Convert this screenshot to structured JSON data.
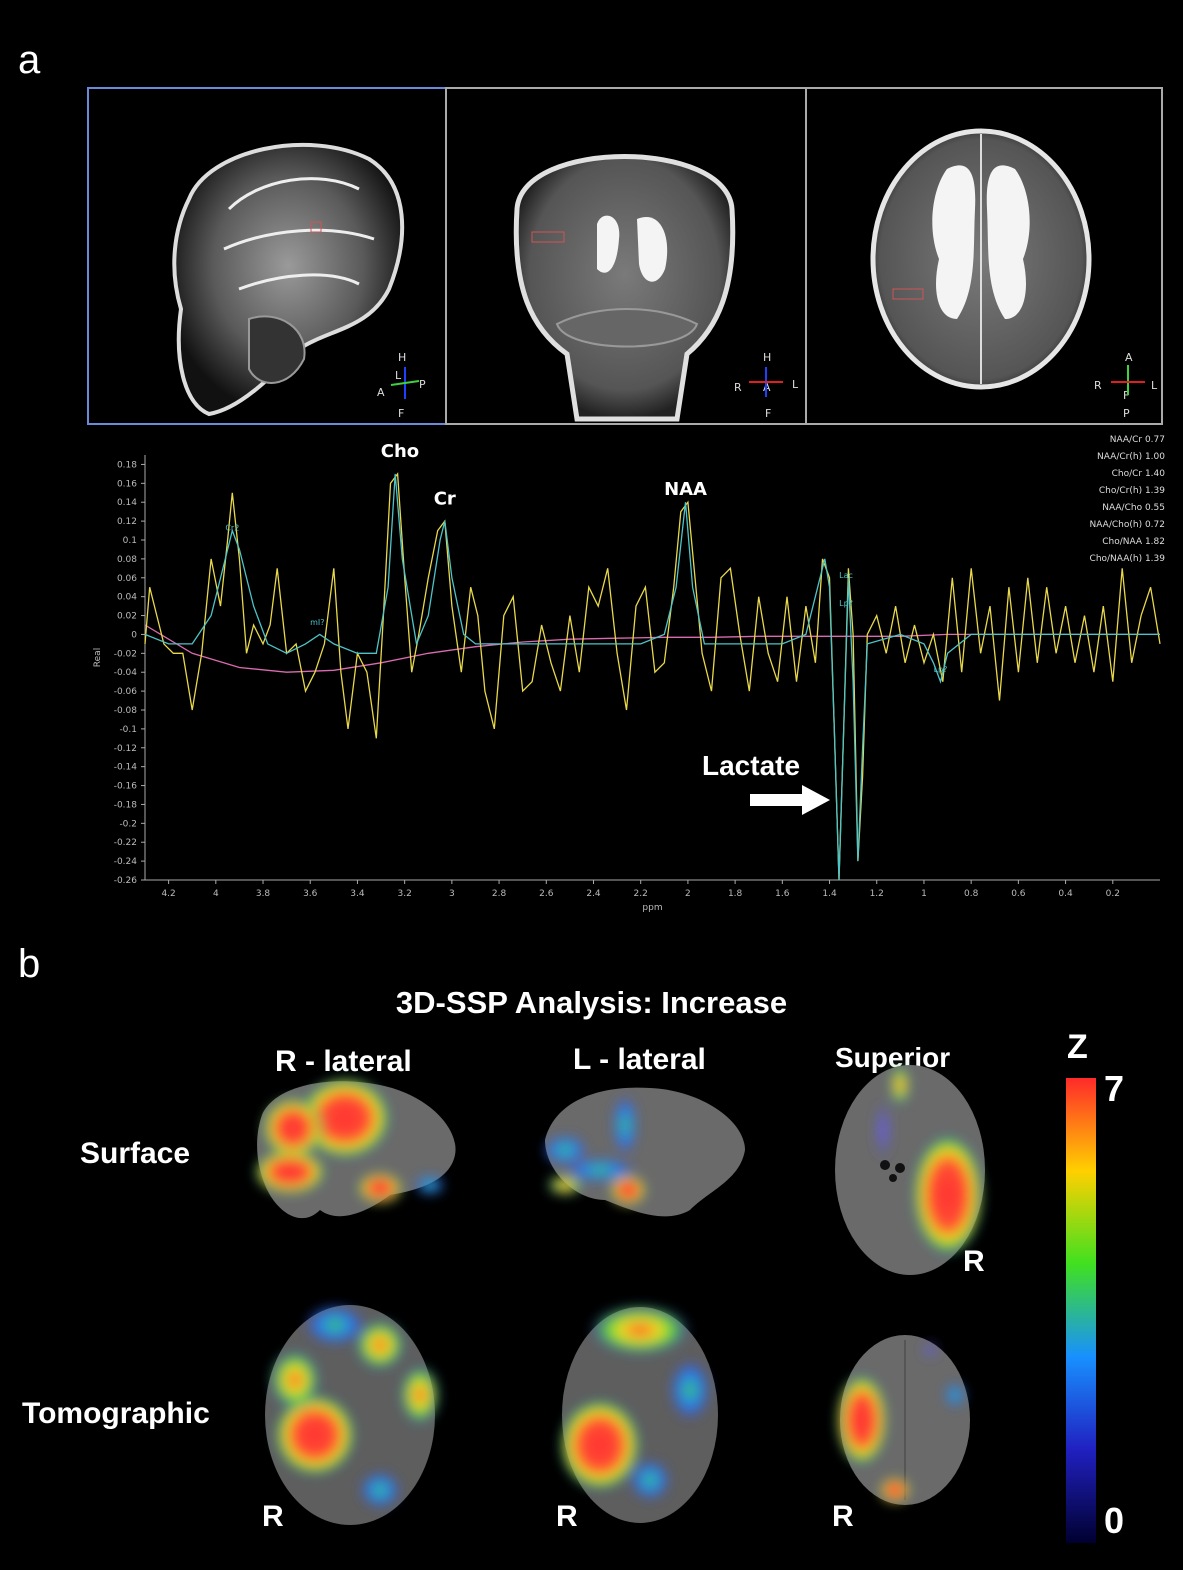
{
  "panel_a": {
    "letter": "a",
    "views": [
      {
        "name": "sagittal",
        "orient": {
          "top": "H",
          "left": "A",
          "right": "P",
          "bottom": "F",
          "center": "L"
        }
      },
      {
        "name": "coronal",
        "orient": {
          "top": "H",
          "left": "R",
          "right": "L",
          "bottom": "F",
          "center": "A"
        }
      },
      {
        "name": "axial",
        "orient": {
          "top": "A",
          "left": "R",
          "right": "L",
          "bottom": "P",
          "center": "F"
        }
      }
    ],
    "ratios": [
      {
        "label": "NAA/Cr",
        "value": "0.77"
      },
      {
        "label": "NAA/Cr(h)",
        "value": "1.00"
      },
      {
        "label": "Cho/Cr",
        "value": "1.40"
      },
      {
        "label": "Cho/Cr(h)",
        "value": "1.39"
      },
      {
        "label": "NAA/Cho",
        "value": "0.55"
      },
      {
        "label": "NAA/Cho(h)",
        "value": "0.72"
      },
      {
        "label": "Cho/NAA",
        "value": "1.82"
      },
      {
        "label": "Cho/NAA(h)",
        "value": "1.39"
      }
    ],
    "lactate_label": "Lactate"
  },
  "chart_data": {
    "type": "line",
    "xlabel": "ppm",
    "ylabel": "Real",
    "xlim": [
      4.3,
      0.0
    ],
    "ylim": [
      -0.26,
      0.19
    ],
    "x_ticks": [
      "4.2",
      "4",
      "3.8",
      "3.6",
      "3.4",
      "3.2",
      "3",
      "2.8",
      "2.6",
      "2.4",
      "2.2",
      "2",
      "1.8",
      "1.6",
      "1.4",
      "1.2",
      "1",
      "0.8",
      "0.6",
      "0.4",
      "0.2"
    ],
    "y_ticks": [
      "0.18",
      "0.16",
      "0.14",
      "0.12",
      "0.1",
      "0.08",
      "0.06",
      "0.04",
      "0.02",
      "0",
      "-0.02",
      "-0.04",
      "-0.06",
      "-0.08",
      "-0.1",
      "-0.12",
      "-0.14",
      "-0.16",
      "-0.18",
      "-0.2",
      "-0.22",
      "-0.24",
      "-0.26"
    ],
    "peak_labels": [
      {
        "text": "Cho",
        "x": 3.22,
        "y": 0.175
      },
      {
        "text": "Cr",
        "x": 3.03,
        "y": 0.125
      },
      {
        "text": "NAA",
        "x": 2.01,
        "y": 0.135
      }
    ],
    "fit_labels": [
      {
        "text": "Cr2",
        "x": 3.93,
        "y": 0.11
      },
      {
        "text": "mI?",
        "x": 3.57,
        "y": 0.01
      },
      {
        "text": "Lac",
        "x": 1.33,
        "y": 0.06
      },
      {
        "text": "Lp?",
        "x": 1.33,
        "y": 0.03
      },
      {
        "text": "Lp?",
        "x": 0.93,
        "y": -0.04
      }
    ],
    "series": [
      {
        "color": "#e8d84a",
        "values": [
          [
            4.3,
            -0.01
          ],
          [
            4.28,
            0.05
          ],
          [
            4.25,
            0.02
          ],
          [
            4.22,
            -0.01
          ],
          [
            4.18,
            -0.02
          ],
          [
            4.14,
            -0.02
          ],
          [
            4.1,
            -0.08
          ],
          [
            4.06,
            -0.02
          ],
          [
            4.02,
            0.08
          ],
          [
            3.98,
            0.03
          ],
          [
            3.95,
            0.1
          ],
          [
            3.93,
            0.15
          ],
          [
            3.9,
            0.08
          ],
          [
            3.87,
            -0.02
          ],
          [
            3.84,
            0.01
          ],
          [
            3.8,
            -0.01
          ],
          [
            3.77,
            0.01
          ],
          [
            3.74,
            0.07
          ],
          [
            3.7,
            -0.02
          ],
          [
            3.66,
            -0.01
          ],
          [
            3.62,
            -0.06
          ],
          [
            3.58,
            -0.04
          ],
          [
            3.54,
            -0.01
          ],
          [
            3.5,
            0.07
          ],
          [
            3.47,
            -0.04
          ],
          [
            3.44,
            -0.1
          ],
          [
            3.4,
            -0.02
          ],
          [
            3.36,
            -0.04
          ],
          [
            3.32,
            -0.11
          ],
          [
            3.29,
            0.02
          ],
          [
            3.26,
            0.16
          ],
          [
            3.23,
            0.17
          ],
          [
            3.2,
            0.06
          ],
          [
            3.17,
            -0.04
          ],
          [
            3.14,
            0.0
          ],
          [
            3.1,
            0.06
          ],
          [
            3.06,
            0.11
          ],
          [
            3.03,
            0.12
          ],
          [
            3.0,
            0.03
          ],
          [
            2.96,
            -0.04
          ],
          [
            2.92,
            0.05
          ],
          [
            2.89,
            0.02
          ],
          [
            2.86,
            -0.06
          ],
          [
            2.82,
            -0.1
          ],
          [
            2.78,
            0.02
          ],
          [
            2.74,
            0.04
          ],
          [
            2.7,
            -0.06
          ],
          [
            2.66,
            -0.05
          ],
          [
            2.62,
            0.01
          ],
          [
            2.58,
            -0.03
          ],
          [
            2.54,
            -0.06
          ],
          [
            2.5,
            0.02
          ],
          [
            2.46,
            -0.04
          ],
          [
            2.42,
            0.05
          ],
          [
            2.38,
            0.03
          ],
          [
            2.34,
            0.07
          ],
          [
            2.3,
            -0.02
          ],
          [
            2.26,
            -0.08
          ],
          [
            2.22,
            0.03
          ],
          [
            2.18,
            0.05
          ],
          [
            2.14,
            -0.04
          ],
          [
            2.1,
            -0.03
          ],
          [
            2.06,
            0.05
          ],
          [
            2.03,
            0.13
          ],
          [
            2.0,
            0.14
          ],
          [
            1.97,
            0.06
          ],
          [
            1.94,
            -0.02
          ],
          [
            1.9,
            -0.06
          ],
          [
            1.86,
            0.06
          ],
          [
            1.82,
            0.07
          ],
          [
            1.78,
            0.0
          ],
          [
            1.74,
            -0.06
          ],
          [
            1.7,
            0.04
          ],
          [
            1.66,
            -0.02
          ],
          [
            1.62,
            -0.05
          ],
          [
            1.58,
            0.04
          ],
          [
            1.54,
            -0.05
          ],
          [
            1.5,
            0.03
          ],
          [
            1.46,
            -0.03
          ],
          [
            1.43,
            0.08
          ],
          [
            1.4,
            0.06
          ],
          [
            1.38,
            -0.1
          ],
          [
            1.36,
            -0.26
          ],
          [
            1.34,
            -0.1
          ],
          [
            1.32,
            0.07
          ],
          [
            1.3,
            0.0
          ],
          [
            1.28,
            -0.24
          ],
          [
            1.26,
            -0.15
          ],
          [
            1.24,
            0.0
          ],
          [
            1.2,
            0.02
          ],
          [
            1.16,
            -0.02
          ],
          [
            1.12,
            0.03
          ],
          [
            1.08,
            -0.03
          ],
          [
            1.04,
            0.01
          ],
          [
            1.0,
            -0.03
          ],
          [
            0.96,
            0.0
          ],
          [
            0.92,
            -0.05
          ],
          [
            0.88,
            0.06
          ],
          [
            0.84,
            -0.04
          ],
          [
            0.8,
            0.07
          ],
          [
            0.76,
            -0.02
          ],
          [
            0.72,
            0.03
          ],
          [
            0.68,
            -0.07
          ],
          [
            0.64,
            0.05
          ],
          [
            0.6,
            -0.04
          ],
          [
            0.56,
            0.06
          ],
          [
            0.52,
            -0.03
          ],
          [
            0.48,
            0.05
          ],
          [
            0.44,
            -0.02
          ],
          [
            0.4,
            0.03
          ],
          [
            0.36,
            -0.03
          ],
          [
            0.32,
            0.02
          ],
          [
            0.28,
            -0.04
          ],
          [
            0.24,
            0.03
          ],
          [
            0.2,
            -0.05
          ],
          [
            0.16,
            0.07
          ],
          [
            0.12,
            -0.03
          ],
          [
            0.08,
            0.02
          ],
          [
            0.04,
            0.05
          ],
          [
            0.0,
            -0.01
          ]
        ]
      },
      {
        "color": "#4ec3c8",
        "values": [
          [
            4.3,
            0.0
          ],
          [
            4.2,
            -0.01
          ],
          [
            4.1,
            -0.01
          ],
          [
            4.02,
            0.02
          ],
          [
            3.96,
            0.08
          ],
          [
            3.93,
            0.11
          ],
          [
            3.9,
            0.09
          ],
          [
            3.84,
            0.03
          ],
          [
            3.78,
            -0.01
          ],
          [
            3.7,
            -0.02
          ],
          [
            3.62,
            -0.01
          ],
          [
            3.56,
            0.0
          ],
          [
            3.5,
            -0.01
          ],
          [
            3.4,
            -0.02
          ],
          [
            3.32,
            -0.02
          ],
          [
            3.27,
            0.05
          ],
          [
            3.24,
            0.17
          ],
          [
            3.21,
            0.08
          ],
          [
            3.15,
            -0.01
          ],
          [
            3.1,
            0.02
          ],
          [
            3.05,
            0.1
          ],
          [
            3.03,
            0.12
          ],
          [
            3.0,
            0.06
          ],
          [
            2.95,
            0.0
          ],
          [
            2.9,
            -0.01
          ],
          [
            2.8,
            -0.01
          ],
          [
            2.6,
            -0.01
          ],
          [
            2.4,
            -0.01
          ],
          [
            2.2,
            -0.01
          ],
          [
            2.1,
            0.0
          ],
          [
            2.05,
            0.05
          ],
          [
            2.01,
            0.14
          ],
          [
            1.98,
            0.05
          ],
          [
            1.93,
            -0.01
          ],
          [
            1.8,
            -0.01
          ],
          [
            1.6,
            -0.01
          ],
          [
            1.5,
            0.0
          ],
          [
            1.45,
            0.05
          ],
          [
            1.42,
            0.08
          ],
          [
            1.4,
            0.05
          ],
          [
            1.38,
            -0.1
          ],
          [
            1.36,
            -0.26
          ],
          [
            1.34,
            -0.1
          ],
          [
            1.32,
            0.06
          ],
          [
            1.3,
            -0.05
          ],
          [
            1.28,
            -0.24
          ],
          [
            1.26,
            -0.12
          ],
          [
            1.24,
            -0.01
          ],
          [
            1.1,
            0.0
          ],
          [
            1.0,
            -0.01
          ],
          [
            0.96,
            -0.03
          ],
          [
            0.93,
            -0.05
          ],
          [
            0.9,
            -0.02
          ],
          [
            0.8,
            0.0
          ],
          [
            0.4,
            0.0
          ],
          [
            0.0,
            0.0
          ]
        ]
      },
      {
        "color": "#d96bb0",
        "values": [
          [
            4.3,
            0.01
          ],
          [
            4.1,
            -0.02
          ],
          [
            3.9,
            -0.035
          ],
          [
            3.7,
            -0.04
          ],
          [
            3.5,
            -0.038
          ],
          [
            3.3,
            -0.03
          ],
          [
            3.1,
            -0.02
          ],
          [
            2.9,
            -0.013
          ],
          [
            2.7,
            -0.008
          ],
          [
            2.5,
            -0.005
          ],
          [
            2.3,
            -0.004
          ],
          [
            2.1,
            -0.003
          ],
          [
            1.9,
            -0.003
          ],
          [
            1.7,
            -0.002
          ],
          [
            1.5,
            -0.002
          ],
          [
            1.3,
            -0.002
          ],
          [
            1.1,
            -0.002
          ],
          [
            0.9,
            0.0
          ],
          [
            0.6,
            0.0
          ],
          [
            0.3,
            0.0
          ],
          [
            0.0,
            0.0
          ]
        ]
      }
    ]
  },
  "panel_b": {
    "letter": "b",
    "title": "3D-SSP Analysis: Increase",
    "col_labels": [
      "R - lateral",
      "L - lateral",
      "Superior"
    ],
    "row_labels": [
      "Surface",
      "Tomographic"
    ],
    "r_marker": "R",
    "colorbar": {
      "label": "Z",
      "max": "7",
      "min": "0",
      "colors": [
        "#ff2a2a",
        "#ffd000",
        "#40e020",
        "#1890ff",
        "#2020c0",
        "#000030"
      ]
    }
  }
}
